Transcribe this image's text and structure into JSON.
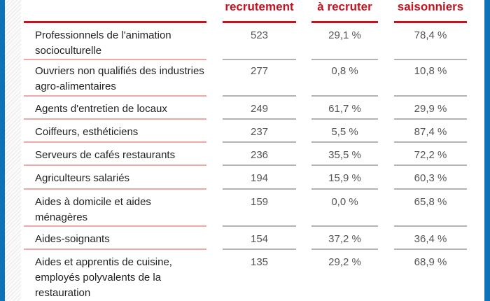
{
  "page": {
    "colors": {
      "accent_blue_bars": "#0d72b8",
      "header_red": "#c3131e",
      "label_separator_pink": "#efa8a8",
      "value_separator_gray": "#b3b3b3",
      "label_text": "#222222",
      "value_text": "#555555",
      "background": "#ffffff"
    }
  },
  "chart_data": {
    "type": "table",
    "title": "",
    "columns": [
      "",
      "recrutement",
      "à recruter",
      "saisonniers"
    ],
    "legend_position": "none",
    "rows": [
      {
        "label": "Professionnels de l'animation\nsocioculturelle",
        "recrutement": "523",
        "a_recruter": "29,1 %",
        "saisonniers": "78,4 %"
      },
      {
        "label": "Ouvriers non qualifiés des industries\nagro-alimentaires",
        "recrutement": "277",
        "a_recruter": "0,8 %",
        "saisonniers": "10,8 %"
      },
      {
        "label": "Agents d'entretien de locaux",
        "recrutement": "249",
        "a_recruter": "61,7 %",
        "saisonniers": "29,9 %"
      },
      {
        "label": "Coiffeurs, esthéticiens",
        "recrutement": "237",
        "a_recruter": "5,5 %",
        "saisonniers": "87,4 %"
      },
      {
        "label": "Serveurs de cafés restaurants",
        "recrutement": "236",
        "a_recruter": "35,5 %",
        "saisonniers": "72,2 %"
      },
      {
        "label": "Agriculteurs salariés",
        "recrutement": "194",
        "a_recruter": "15,9 %",
        "saisonniers": "60,3 %"
      },
      {
        "label": "Aides à domicile et aides\nménagères",
        "recrutement": "159",
        "a_recruter": "0,0 %",
        "saisonniers": "65,8 %"
      },
      {
        "label": "Aides-soignants",
        "recrutement": "154",
        "a_recruter": "37,2 %",
        "saisonniers": "36,4 %"
      },
      {
        "label": "Aides et apprentis de cuisine,\nemployés polyvalents de la\nrestauration",
        "recrutement": "135",
        "a_recruter": "29,2 %",
        "saisonniers": "68,9 %"
      }
    ],
    "values_recrutement": [
      523,
      277,
      249,
      237,
      236,
      194,
      159,
      154,
      135
    ],
    "values_a_recruter_pct": [
      29.1,
      0.8,
      61.7,
      5.5,
      35.5,
      15.9,
      0.0,
      37.2,
      29.2
    ],
    "values_saisonniers_pct": [
      78.4,
      10.8,
      29.9,
      87.4,
      72.2,
      60.3,
      65.8,
      36.4,
      68.9
    ]
  }
}
